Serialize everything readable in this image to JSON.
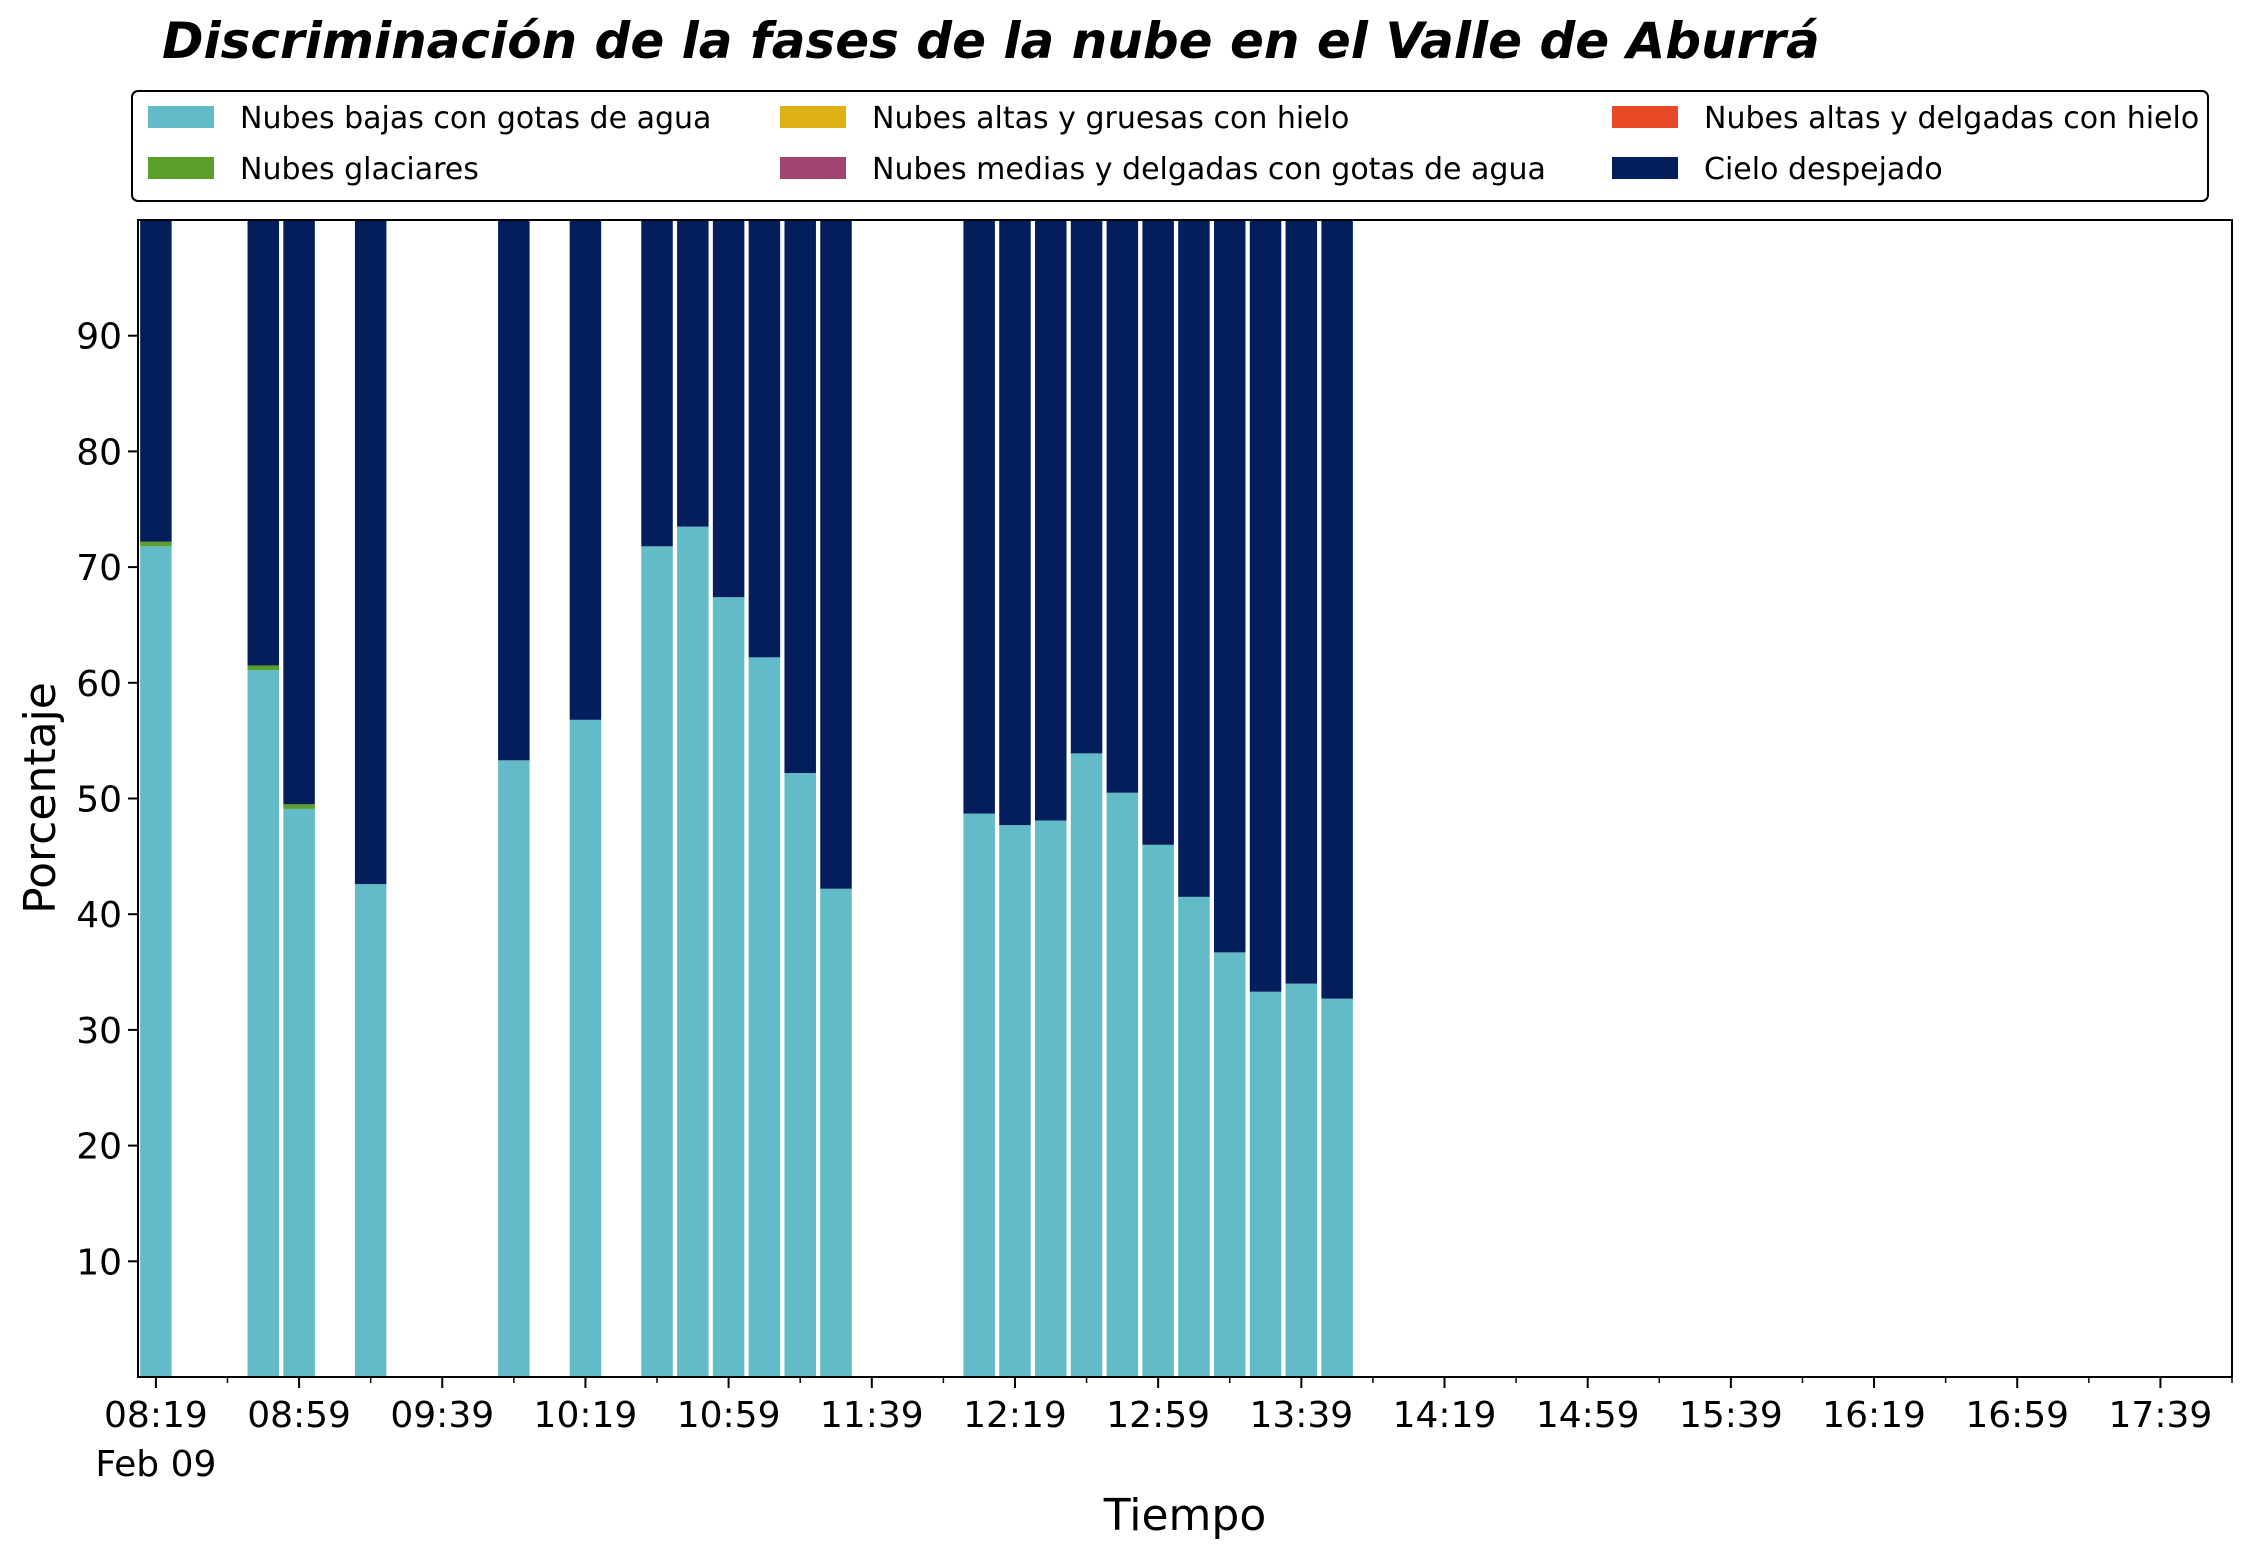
{
  "chart_data": {
    "type": "bar",
    "stacked": true,
    "title": "Discriminación de la fases de la nube en el Valle de Aburrá",
    "xlabel": "Tiempo",
    "ylabel": "Porcentaje",
    "ylim": [
      0,
      100
    ],
    "yticks": [
      10,
      20,
      30,
      40,
      50,
      60,
      70,
      80,
      90
    ],
    "x_range": [
      "08:14",
      "17:59"
    ],
    "x_bin_minutes": 10,
    "xticks": [
      "08:19",
      "08:59",
      "09:39",
      "10:19",
      "10:59",
      "11:39",
      "12:19",
      "12:59",
      "13:39",
      "14:19",
      "14:59",
      "15:39",
      "16:19",
      "16:59",
      "17:39"
    ],
    "xtick_sublabel": "Feb 09",
    "x_minor_tick_minutes": 20,
    "legend_position": "top",
    "grid": false,
    "series": [
      {
        "name": "Nubes bajas con gotas de agua",
        "color": "#63bbc8"
      },
      {
        "name": "Nubes altas y gruesas con hielo",
        "color": "#ddb014"
      },
      {
        "name": "Nubes altas y delgadas con hielo",
        "color": "#e84a27"
      },
      {
        "name": "Nubes glaciares",
        "color": "#5b9e2a"
      },
      {
        "name": "Nubes medias y delgadas con gotas de agua",
        "color": "#a04474"
      },
      {
        "name": "Cielo despejado",
        "color": "#041e5b"
      }
    ],
    "legend_order": [
      0,
      3,
      1,
      4,
      2,
      5
    ],
    "bars": [
      {
        "time": "08:19",
        "values": [
          71.8,
          0,
          0,
          0.4,
          0,
          27.8
        ]
      },
      {
        "time": "08:49",
        "values": [
          61.1,
          0,
          0,
          0.4,
          0,
          38.5
        ]
      },
      {
        "time": "08:59",
        "values": [
          49.1,
          0,
          0,
          0.4,
          0,
          50.5
        ]
      },
      {
        "time": "09:19",
        "values": [
          42.6,
          0,
          0,
          0,
          0,
          57.4
        ]
      },
      {
        "time": "09:59",
        "values": [
          53.3,
          0,
          0,
          0,
          0,
          46.7
        ]
      },
      {
        "time": "10:19",
        "values": [
          56.8,
          0,
          0,
          0,
          0,
          43.2
        ]
      },
      {
        "time": "10:39",
        "values": [
          71.8,
          0,
          0,
          0,
          0,
          28.2
        ]
      },
      {
        "time": "10:49",
        "values": [
          73.5,
          0,
          0,
          0,
          0,
          26.5
        ]
      },
      {
        "time": "10:59",
        "values": [
          67.4,
          0,
          0,
          0,
          0,
          32.6
        ]
      },
      {
        "time": "11:09",
        "values": [
          62.2,
          0,
          0,
          0,
          0,
          37.8
        ]
      },
      {
        "time": "11:19",
        "values": [
          52.2,
          0,
          0,
          0,
          0,
          47.8
        ]
      },
      {
        "time": "11:29",
        "values": [
          42.2,
          0,
          0,
          0,
          0,
          57.8
        ]
      },
      {
        "time": "12:09",
        "values": [
          48.7,
          0,
          0,
          0,
          0,
          51.3
        ]
      },
      {
        "time": "12:19",
        "values": [
          47.7,
          0,
          0,
          0,
          0,
          52.3
        ]
      },
      {
        "time": "12:29",
        "values": [
          48.1,
          0,
          0,
          0,
          0,
          51.9
        ]
      },
      {
        "time": "12:39",
        "values": [
          53.9,
          0,
          0,
          0,
          0,
          46.1
        ]
      },
      {
        "time": "12:49",
        "values": [
          50.5,
          0,
          0,
          0,
          0,
          49.5
        ]
      },
      {
        "time": "12:59",
        "values": [
          46.0,
          0,
          0,
          0,
          0,
          54.0
        ]
      },
      {
        "time": "13:09",
        "values": [
          41.5,
          0,
          0,
          0,
          0,
          58.5
        ]
      },
      {
        "time": "13:19",
        "values": [
          36.7,
          0,
          0,
          0,
          0,
          63.3
        ]
      },
      {
        "time": "13:29",
        "values": [
          33.3,
          0,
          0,
          0,
          0,
          66.7
        ]
      },
      {
        "time": "13:39",
        "values": [
          34.0,
          0,
          0,
          0,
          0,
          66.0
        ]
      },
      {
        "time": "13:49",
        "values": [
          32.7,
          0,
          0,
          0,
          0,
          67.3
        ]
      }
    ]
  }
}
